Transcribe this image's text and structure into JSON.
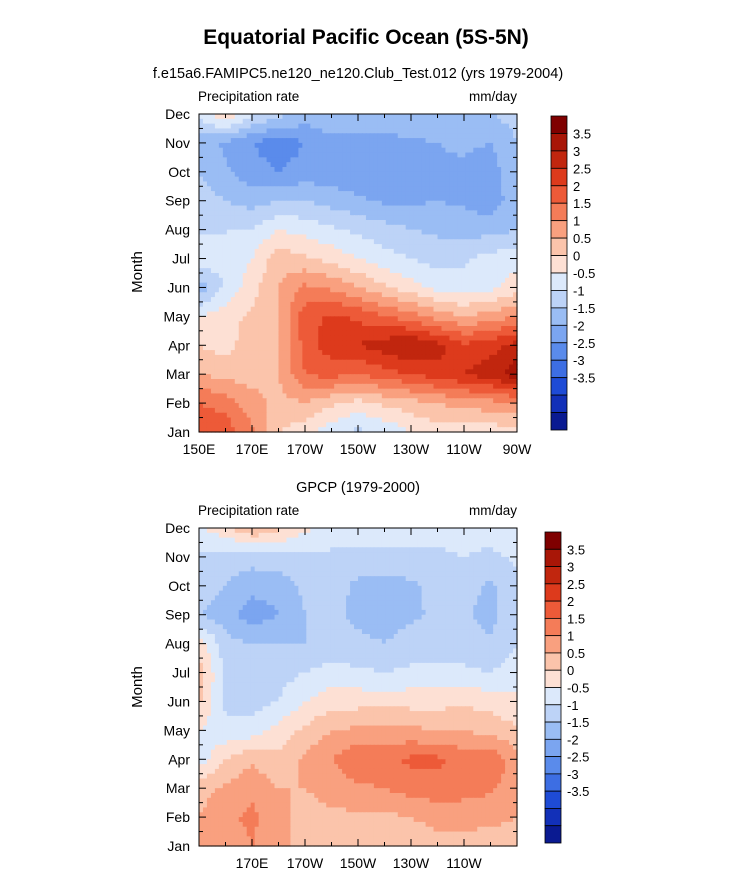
{
  "figure": {
    "title": "Equatorial Pacific Ocean (5S-5N)"
  },
  "chart_data": [
    {
      "type": "heatmap",
      "title": "f.e15a6.FAMIPC5.ne120_ne120.Club_Test.012 (yrs 1979-2004)",
      "left_label": "Precipitation rate",
      "right_label": "mm/day",
      "xlabel": "",
      "ylabel": "Month",
      "x_tick_labels": [
        "150E",
        "170E",
        "170W",
        "150W",
        "130W",
        "110W",
        "90W"
      ],
      "y_tick_labels": [
        "Jan",
        "Feb",
        "Mar",
        "Apr",
        "May",
        "Jun",
        "Jul",
        "Aug",
        "Sep",
        "Oct",
        "Nov",
        "Dec"
      ],
      "colorbar_labels": [
        "3.5",
        "3",
        "2.5",
        "2",
        "1.5",
        "1",
        "0.5",
        "0",
        "-0.5",
        "-1",
        "-1.5",
        "-2",
        "-2.5",
        "-3",
        "-3.5"
      ],
      "x": [
        150,
        160,
        170,
        180,
        190,
        200,
        210,
        220,
        230,
        240,
        250,
        260,
        270
      ],
      "months": [
        "Jan",
        "Feb",
        "Mar",
        "Apr",
        "May",
        "Jun",
        "Jul",
        "Aug",
        "Sep",
        "Oct",
        "Nov",
        "Dec"
      ],
      "z": [
        [
          2.5,
          2.3,
          1.6,
          0.5,
          0.2,
          -0.3,
          -0.6,
          -0.4,
          0.0,
          0.3,
          0.2,
          0.2,
          0.3
        ],
        [
          2.0,
          1.8,
          1.2,
          0.8,
          1.0,
          0.6,
          0.3,
          0.6,
          0.8,
          1.0,
          1.2,
          1.3,
          1.5
        ],
        [
          1.0,
          0.8,
          0.8,
          1.0,
          2.0,
          2.2,
          2.0,
          2.3,
          2.5,
          2.8,
          3.0,
          3.3,
          3.8
        ],
        [
          0.5,
          0.3,
          0.8,
          1.0,
          2.2,
          2.8,
          3.0,
          3.3,
          3.6,
          3.2,
          2.6,
          2.8,
          3.2
        ],
        [
          0.0,
          0.3,
          0.6,
          1.0,
          2.3,
          2.6,
          2.4,
          2.0,
          1.7,
          1.3,
          1.0,
          1.2,
          1.5
        ],
        [
          -1.3,
          -0.4,
          0.3,
          1.0,
          1.6,
          1.4,
          1.0,
          0.6,
          0.2,
          -0.2,
          -0.3,
          -0.2,
          0.3
        ],
        [
          0.0,
          -0.5,
          0.0,
          0.8,
          0.6,
          0.3,
          0.0,
          -0.3,
          -0.5,
          -0.7,
          -0.6,
          -0.3,
          -0.2
        ],
        [
          -0.6,
          -0.5,
          -0.5,
          0.0,
          -0.2,
          -0.4,
          -0.6,
          -0.8,
          -1.0,
          -1.1,
          -1.2,
          -1.2,
          -1.0
        ],
        [
          -0.8,
          -1.0,
          -1.2,
          -1.0,
          -1.0,
          -1.2,
          -1.4,
          -1.6,
          -1.6,
          -1.5,
          -1.6,
          -1.8,
          -1.2
        ],
        [
          -1.0,
          -1.4,
          -1.8,
          -2.0,
          -1.8,
          -1.8,
          -1.9,
          -1.9,
          -1.8,
          -1.6,
          -1.6,
          -1.8,
          -1.0
        ],
        [
          -1.2,
          -1.6,
          -2.0,
          -2.3,
          -2.0,
          -1.7,
          -1.7,
          -1.7,
          -1.6,
          -1.5,
          -1.4,
          -1.5,
          -1.0
        ],
        [
          -0.4,
          0.5,
          -0.4,
          -0.8,
          -1.2,
          -1.0,
          -1.0,
          -1.0,
          -1.1,
          -1.0,
          -1.0,
          -1.0,
          -0.8
        ]
      ],
      "xlim": [
        150,
        270
      ],
      "ylim": [
        1,
        12
      ]
    },
    {
      "type": "heatmap",
      "title": "GPCP (1979-2000)",
      "left_label": "Precipitation rate",
      "right_label": "mm/day",
      "xlabel": "",
      "ylabel": "Month",
      "x_tick_labels": [
        "170E",
        "170W",
        "150W",
        "130W",
        "110W"
      ],
      "y_tick_labels": [
        "Jan",
        "Feb",
        "Mar",
        "Apr",
        "May",
        "Jun",
        "Jul",
        "Aug",
        "Sep",
        "Oct",
        "Nov",
        "Dec"
      ],
      "colorbar_labels": [
        "3.5",
        "3",
        "2.5",
        "2",
        "1.5",
        "1",
        "0.5",
        "0",
        "-0.5",
        "-1",
        "-1.5",
        "-2",
        "-2.5",
        "-3",
        "-3.5"
      ],
      "x": [
        150,
        160,
        170,
        180,
        190,
        200,
        210,
        220,
        230,
        240,
        250,
        260,
        270
      ],
      "months": [
        "Jan",
        "Feb",
        "Mar",
        "Apr",
        "May",
        "Jun",
        "Jul",
        "Aug",
        "Sep",
        "Oct",
        "Nov",
        "Dec"
      ],
      "z": [
        [
          1.0,
          1.2,
          1.5,
          1.2,
          0.8,
          0.6,
          0.5,
          0.5,
          0.6,
          0.8,
          0.8,
          0.8,
          0.8
        ],
        [
          1.0,
          1.4,
          1.6,
          1.2,
          0.8,
          0.9,
          0.9,
          0.9,
          1.0,
          1.2,
          1.2,
          1.1,
          1.0
        ],
        [
          0.8,
          1.1,
          1.4,
          1.0,
          1.0,
          1.2,
          1.4,
          1.5,
          1.7,
          1.8,
          1.7,
          1.6,
          1.2
        ],
        [
          -0.3,
          0.5,
          0.9,
          0.6,
          1.1,
          1.5,
          1.9,
          1.9,
          2.1,
          2.1,
          1.8,
          1.9,
          1.2
        ],
        [
          0.0,
          -0.4,
          -0.3,
          0.2,
          0.6,
          1.0,
          1.1,
          1.1,
          1.1,
          1.0,
          1.0,
          0.8,
          0.6
        ],
        [
          0.6,
          -0.6,
          -0.7,
          -0.5,
          0.0,
          0.3,
          0.3,
          0.3,
          0.3,
          0.3,
          0.4,
          0.3,
          0.1
        ],
        [
          0.7,
          -0.6,
          -0.8,
          -0.7,
          -0.5,
          -0.3,
          -0.4,
          -0.5,
          -0.4,
          -0.4,
          -0.4,
          -0.5,
          -0.3
        ],
        [
          0.3,
          -0.8,
          -1.0,
          -1.0,
          -1.0,
          -0.8,
          -0.9,
          -1.0,
          -0.8,
          -0.7,
          -0.8,
          -0.9,
          -0.5
        ],
        [
          -1.0,
          -1.3,
          -1.8,
          -1.5,
          -1.0,
          -0.9,
          -1.1,
          -1.2,
          -1.1,
          -0.9,
          -0.9,
          -1.2,
          -0.6
        ],
        [
          -0.7,
          -1.0,
          -1.3,
          -1.3,
          -0.9,
          -0.8,
          -1.1,
          -1.2,
          -1.1,
          -0.8,
          -0.8,
          -1.1,
          -0.6
        ],
        [
          -0.6,
          -0.8,
          -0.8,
          -0.7,
          -0.6,
          -0.6,
          -0.7,
          -0.7,
          -0.6,
          -0.6,
          -0.5,
          -0.6,
          -0.4
        ],
        [
          -0.1,
          0.4,
          1.0,
          0.6,
          0.1,
          -0.2,
          -0.2,
          -0.2,
          -0.3,
          -0.3,
          -0.3,
          -0.3,
          -0.2
        ]
      ],
      "xlim": [
        150,
        270
      ],
      "ylim": [
        1,
        12
      ]
    }
  ],
  "colors": {
    "positive": [
      "#fde0d4",
      "#fbc4ab",
      "#f9a07f",
      "#f47c58",
      "#ed5a38",
      "#dd3a1c",
      "#c1260e",
      "#a81607",
      "#7f0000"
    ],
    "negative": [
      "#dce9fb",
      "#bdd3f7",
      "#9abdf4",
      "#7ba5f0",
      "#5a8beb",
      "#3d6ee3",
      "#1e4bd6",
      "#1230b8",
      "#0a1a91"
    ]
  }
}
